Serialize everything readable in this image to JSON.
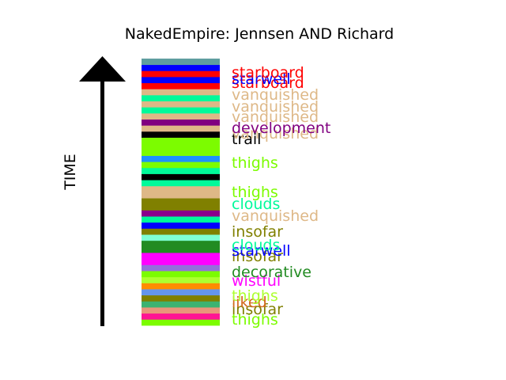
{
  "chart_data": {
    "type": "bar",
    "title": "NakedEmpire: Jennsen AND Richard",
    "ylabel": "TIME",
    "time_direction": "up",
    "grid": false,
    "stack_bottom_to_top": [
      {
        "color": "#7cfc00"
      },
      {
        "color": "#ff1493"
      },
      {
        "color": "#e9967a"
      },
      {
        "color": "#3cb371"
      },
      {
        "color": "#808000"
      },
      {
        "color": "#6495ed"
      },
      {
        "color": "#ff8c00"
      },
      {
        "color": "#adff2f"
      },
      {
        "color": "#7cfc00"
      },
      {
        "color": "#9370db"
      },
      {
        "color": "#ff00ff"
      },
      {
        "color": "#ff00ff"
      },
      {
        "color": "#228b22"
      },
      {
        "color": "#228b22"
      },
      {
        "color": "#7fffd4"
      },
      {
        "color": "#808000"
      },
      {
        "color": "#0000ff"
      },
      {
        "color": "#00fa9a"
      },
      {
        "color": "#8b008b"
      },
      {
        "color": "#808000"
      },
      {
        "color": "#808000"
      },
      {
        "color": "#deb887"
      },
      {
        "color": "#deb887"
      },
      {
        "color": "#00fa9a"
      },
      {
        "color": "#000000"
      },
      {
        "color": "#00fa9a"
      },
      {
        "color": "#7cfc00"
      },
      {
        "color": "#1e90ff"
      },
      {
        "color": "#7cfc00"
      },
      {
        "color": "#7cfc00"
      },
      {
        "color": "#7cfc00"
      },
      {
        "color": "#000000"
      },
      {
        "color": "#deb887"
      },
      {
        "color": "#800080"
      },
      {
        "color": "#deb887"
      },
      {
        "color": "#00fa9a"
      },
      {
        "color": "#deb887"
      },
      {
        "color": "#00fa9a"
      },
      {
        "color": "#deb887"
      },
      {
        "color": "#ff0000"
      },
      {
        "color": "#0000ff"
      },
      {
        "color": "#ff0000"
      },
      {
        "color": "#0000ff"
      },
      {
        "color": "#5f9ea0"
      }
    ],
    "labels_bottom_to_top": [
      {
        "text": "thighs",
        "color": "#7cfc00"
      },
      {
        "text": "insofar",
        "color": "#808000"
      },
      {
        "text": "liked",
        "color": "#d2691e"
      },
      {
        "text": "thighs",
        "color": "#adff2f"
      },
      {
        "text": "wistful",
        "color": "#ff00ff"
      },
      {
        "text": "decorative",
        "color": "#228b22"
      },
      {
        "text": "insofar",
        "color": "#808000"
      },
      {
        "text": "starwell",
        "color": "#0000ff"
      },
      {
        "text": "clouds",
        "color": "#00fa9a"
      },
      {
        "text": "insofar",
        "color": "#808000"
      },
      {
        "text": "vanquished",
        "color": "#deb887"
      },
      {
        "text": "clouds",
        "color": "#00fa9a"
      },
      {
        "text": "thighs",
        "color": "#7cfc00"
      },
      {
        "text": "thighs",
        "color": "#7cfc00"
      },
      {
        "text": "trail",
        "color": "#000000"
      },
      {
        "text": "vanquished",
        "color": "#deb887"
      },
      {
        "text": "development",
        "color": "#800080"
      },
      {
        "text": "vanquished",
        "color": "#deb887"
      },
      {
        "text": "vanquished",
        "color": "#deb887"
      },
      {
        "text": "vanquished",
        "color": "#deb887"
      },
      {
        "text": "starboard",
        "color": "#ff0000"
      },
      {
        "text": "starwell",
        "color": "#0000ff"
      },
      {
        "text": "starboard",
        "color": "#ff0000"
      }
    ]
  }
}
